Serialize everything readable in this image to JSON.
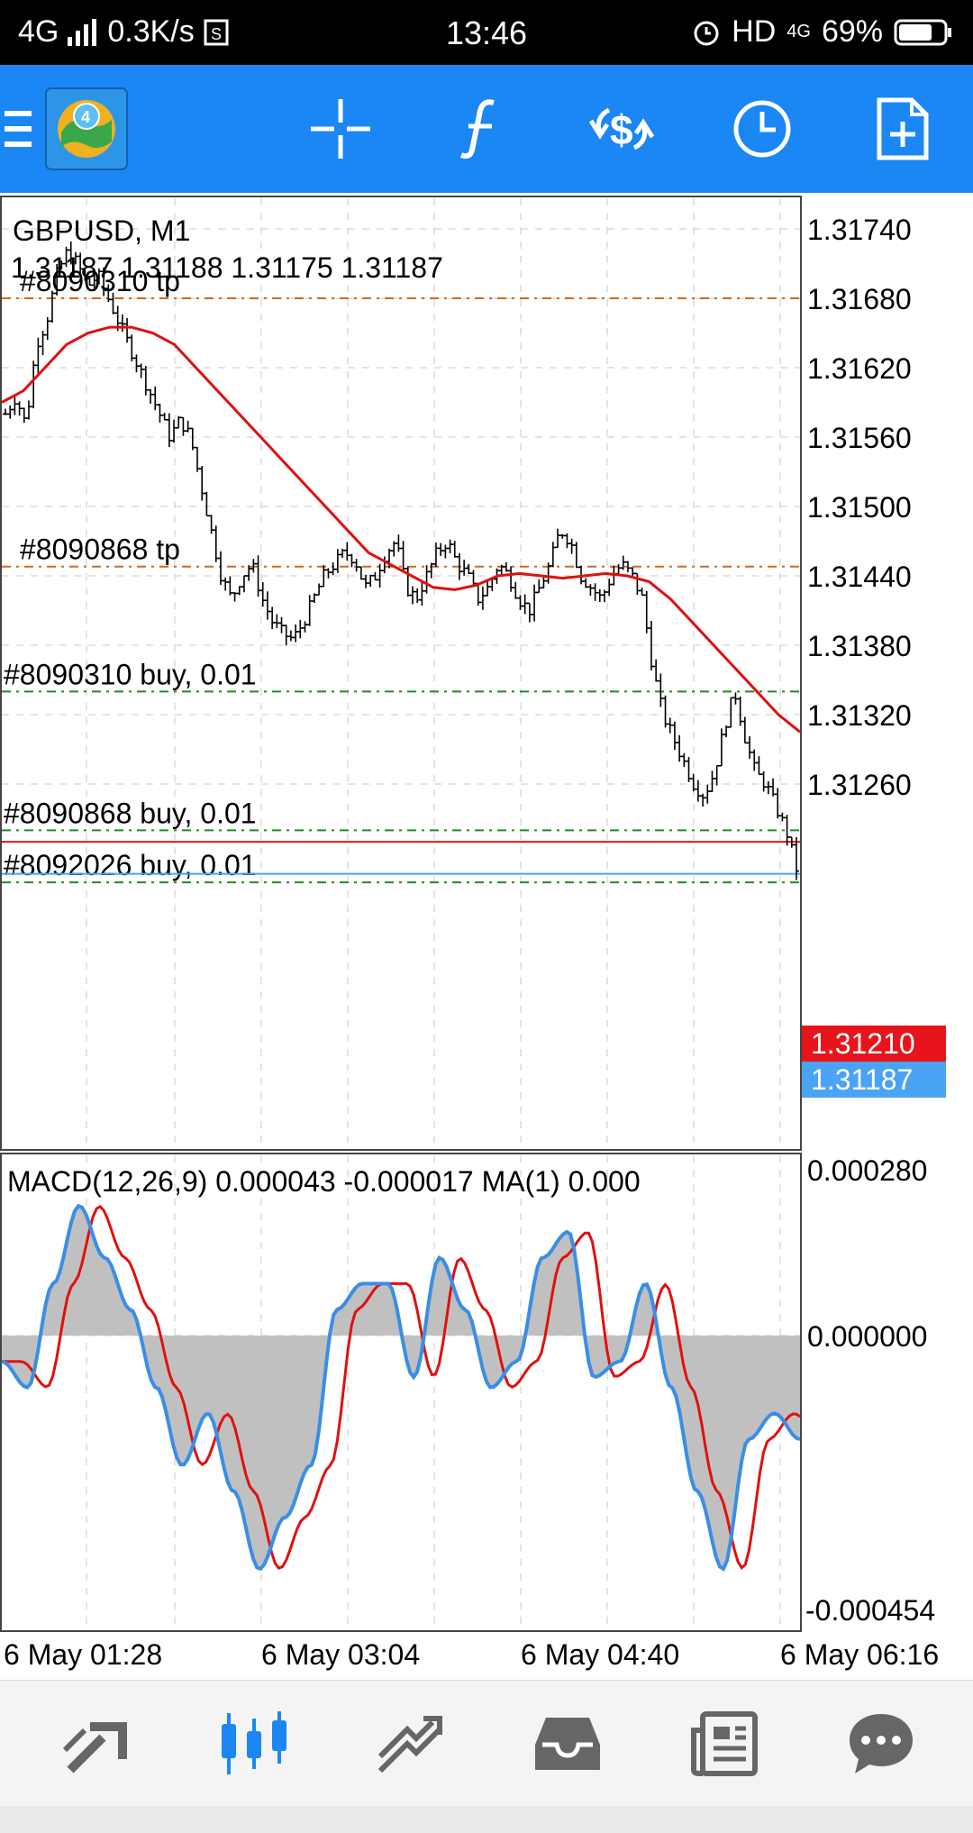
{
  "status_bar": {
    "network": "4G",
    "speed": "0.3K/s",
    "time": "13:46",
    "hd": "HD",
    "net2": "4G",
    "battery": "69%"
  },
  "toolbar": {
    "icons": [
      "menu-icon",
      "mt4-logo",
      "crosshair-icon",
      "indicators-icon",
      "trade-icon",
      "timeframe-icon",
      "new-order-icon"
    ]
  },
  "chart": {
    "symbol_label": "GBPUSD, M1",
    "ohlc_label": "1.31187 1.31188 1.31175 1.31187",
    "price_axis": [
      "1.31740",
      "1.31680",
      "1.31620",
      "1.31560",
      "1.31500",
      "1.31440",
      "1.31380",
      "1.31320",
      "1.31260"
    ],
    "current_bid": "1.31187",
    "red_line_price": "1.31210",
    "order_labels": {
      "tp1": "#8090310 tp",
      "tp2": "#8090868 tp",
      "buy1": "#8090310 buy, 0.01",
      "buy2": "#8090868 buy, 0.01",
      "buy3": "#8092026 buy, 0.01"
    },
    "colors": {
      "bear": "#000000",
      "ma": "#e01010",
      "bid_badge": "#4aa3f5",
      "ask_badge": "#e8141c",
      "tp_line": "#d2691e",
      "buy_line": "#228b22"
    }
  },
  "macd": {
    "label": "MACD(12,26,9) 0.000043 -0.000017 MA(1) 0.000",
    "axis": [
      "0.000280",
      "0.000000",
      "-0.000454"
    ],
    "colors": {
      "histogram": "#c0c0c0",
      "signal": "#e01010",
      "macd": "#3a8ee6"
    }
  },
  "time_axis": [
    "6 May 01:28",
    "6 May 03:04",
    "6 May 04:40",
    "6 May 06:16"
  ],
  "bottom_nav": {
    "items": [
      "quotes-icon",
      "chart-icon",
      "trade-icon",
      "history-icon",
      "news-icon",
      "chat-icon"
    ]
  },
  "chart_data": {
    "type": "candlestick",
    "symbol": "GBPUSD",
    "timeframe": "M1",
    "ylim": [
      1.3115,
      1.3178
    ],
    "close_series": [
      1.3158,
      1.31595,
      1.3157,
      1.3164,
      1.3166,
      1.317,
      1.3172,
      1.3171,
      1.3169,
      1.317,
      1.3168,
      1.3166,
      1.3164,
      1.3162,
      1.316,
      1.3158,
      1.3156,
      1.31575,
      1.3156,
      1.3152,
      1.3148,
      1.3144,
      1.3142,
      1.3144,
      1.3145,
      1.3142,
      1.314,
      1.3139,
      1.31385,
      1.314,
      1.3142,
      1.3144,
      1.3145,
      1.3146,
      1.31455,
      1.3143,
      1.3144,
      1.3146,
      1.3147,
      1.3143,
      1.3142,
      1.3144,
      1.3146,
      1.3147,
      1.3145,
      1.3144,
      1.3142,
      1.3143,
      1.3145,
      1.3144,
      1.3142,
      1.3141,
      1.3143,
      1.3145,
      1.3148,
      1.3147,
      1.3144,
      1.3143,
      1.3142,
      1.3144,
      1.3145,
      1.3144,
      1.3142,
      1.3136,
      1.3132,
      1.313,
      1.3128,
      1.3126,
      1.3125,
      1.3127,
      1.3131,
      1.3134,
      1.313,
      1.3127,
      1.3126,
      1.3124,
      1.3122,
      1.31187
    ],
    "ma_series": [
      1.3159,
      1.316,
      1.3162,
      1.3164,
      1.3165,
      1.31655,
      1.31655,
      1.3165,
      1.3164,
      1.3162,
      1.316,
      1.3158,
      1.3156,
      1.3154,
      1.3152,
      1.315,
      1.3148,
      1.3146,
      1.3145,
      1.3144,
      1.3143,
      1.31428,
      1.31432,
      1.3144,
      1.31442,
      1.3144,
      1.31438,
      1.3144,
      1.31442,
      1.3144,
      1.31435,
      1.3142,
      1.314,
      1.3138,
      1.3136,
      1.3134,
      1.3132,
      1.31305
    ],
    "macd_values": [
      -5e-05,
      -0.0001,
      0.0001,
      0.00025,
      0.00015,
      5e-05,
      -0.0001,
      -0.00025,
      -0.00015,
      -0.0003,
      -0.00045,
      -0.00035,
      -0.00025,
      5e-05,
      0.0001,
      0.0001,
      -8e-05,
      0.00015,
      5e-05,
      -0.0001,
      -5e-05,
      0.00015,
      0.0002,
      -8e-05,
      -5e-05,
      0.0001,
      -0.0001,
      -0.0003,
      -0.00045,
      -0.0002,
      -0.00015,
      -0.0002
    ]
  }
}
